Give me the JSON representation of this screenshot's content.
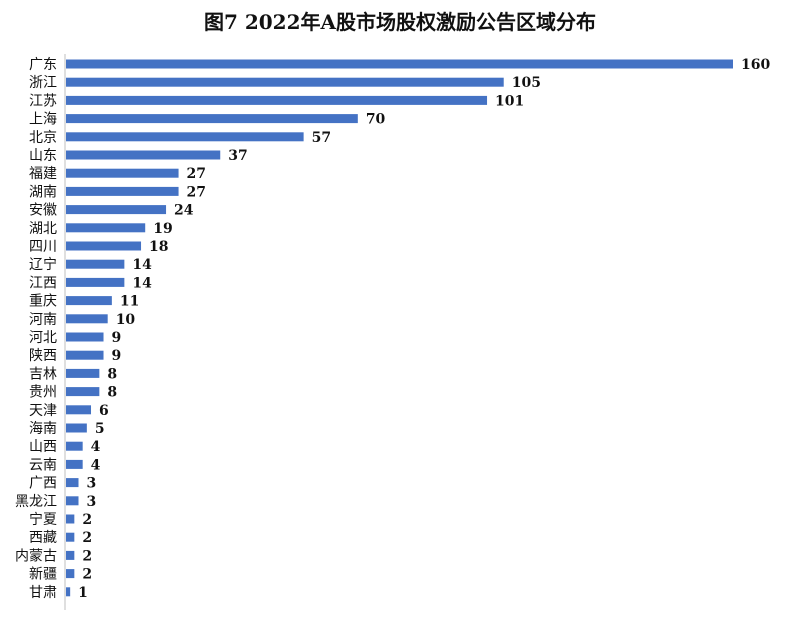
{
  "chart_data": {
    "type": "bar",
    "orientation": "horizontal",
    "title": "图7  2022年A股市场股权激励公告区域分布",
    "categories": [
      "广东",
      "浙江",
      "江苏",
      "上海",
      "北京",
      "山东",
      "福建",
      "湖南",
      "安徽",
      "湖北",
      "四川",
      "辽宁",
      "江西",
      "重庆",
      "河南",
      "河北",
      "陕西",
      "吉林",
      "贵州",
      "天津",
      "海南",
      "山西",
      "云南",
      "广西",
      "黑龙江",
      "宁夏",
      "西藏",
      "内蒙古",
      "新疆",
      "甘肃"
    ],
    "values": [
      160,
      105,
      101,
      70,
      57,
      37,
      27,
      27,
      24,
      19,
      18,
      14,
      14,
      11,
      10,
      9,
      9,
      8,
      8,
      6,
      5,
      4,
      4,
      3,
      3,
      2,
      2,
      2,
      2,
      1
    ],
    "xlim": [
      0,
      160
    ],
    "grid": false,
    "legend": "none",
    "bar_color": "#4472C4"
  }
}
